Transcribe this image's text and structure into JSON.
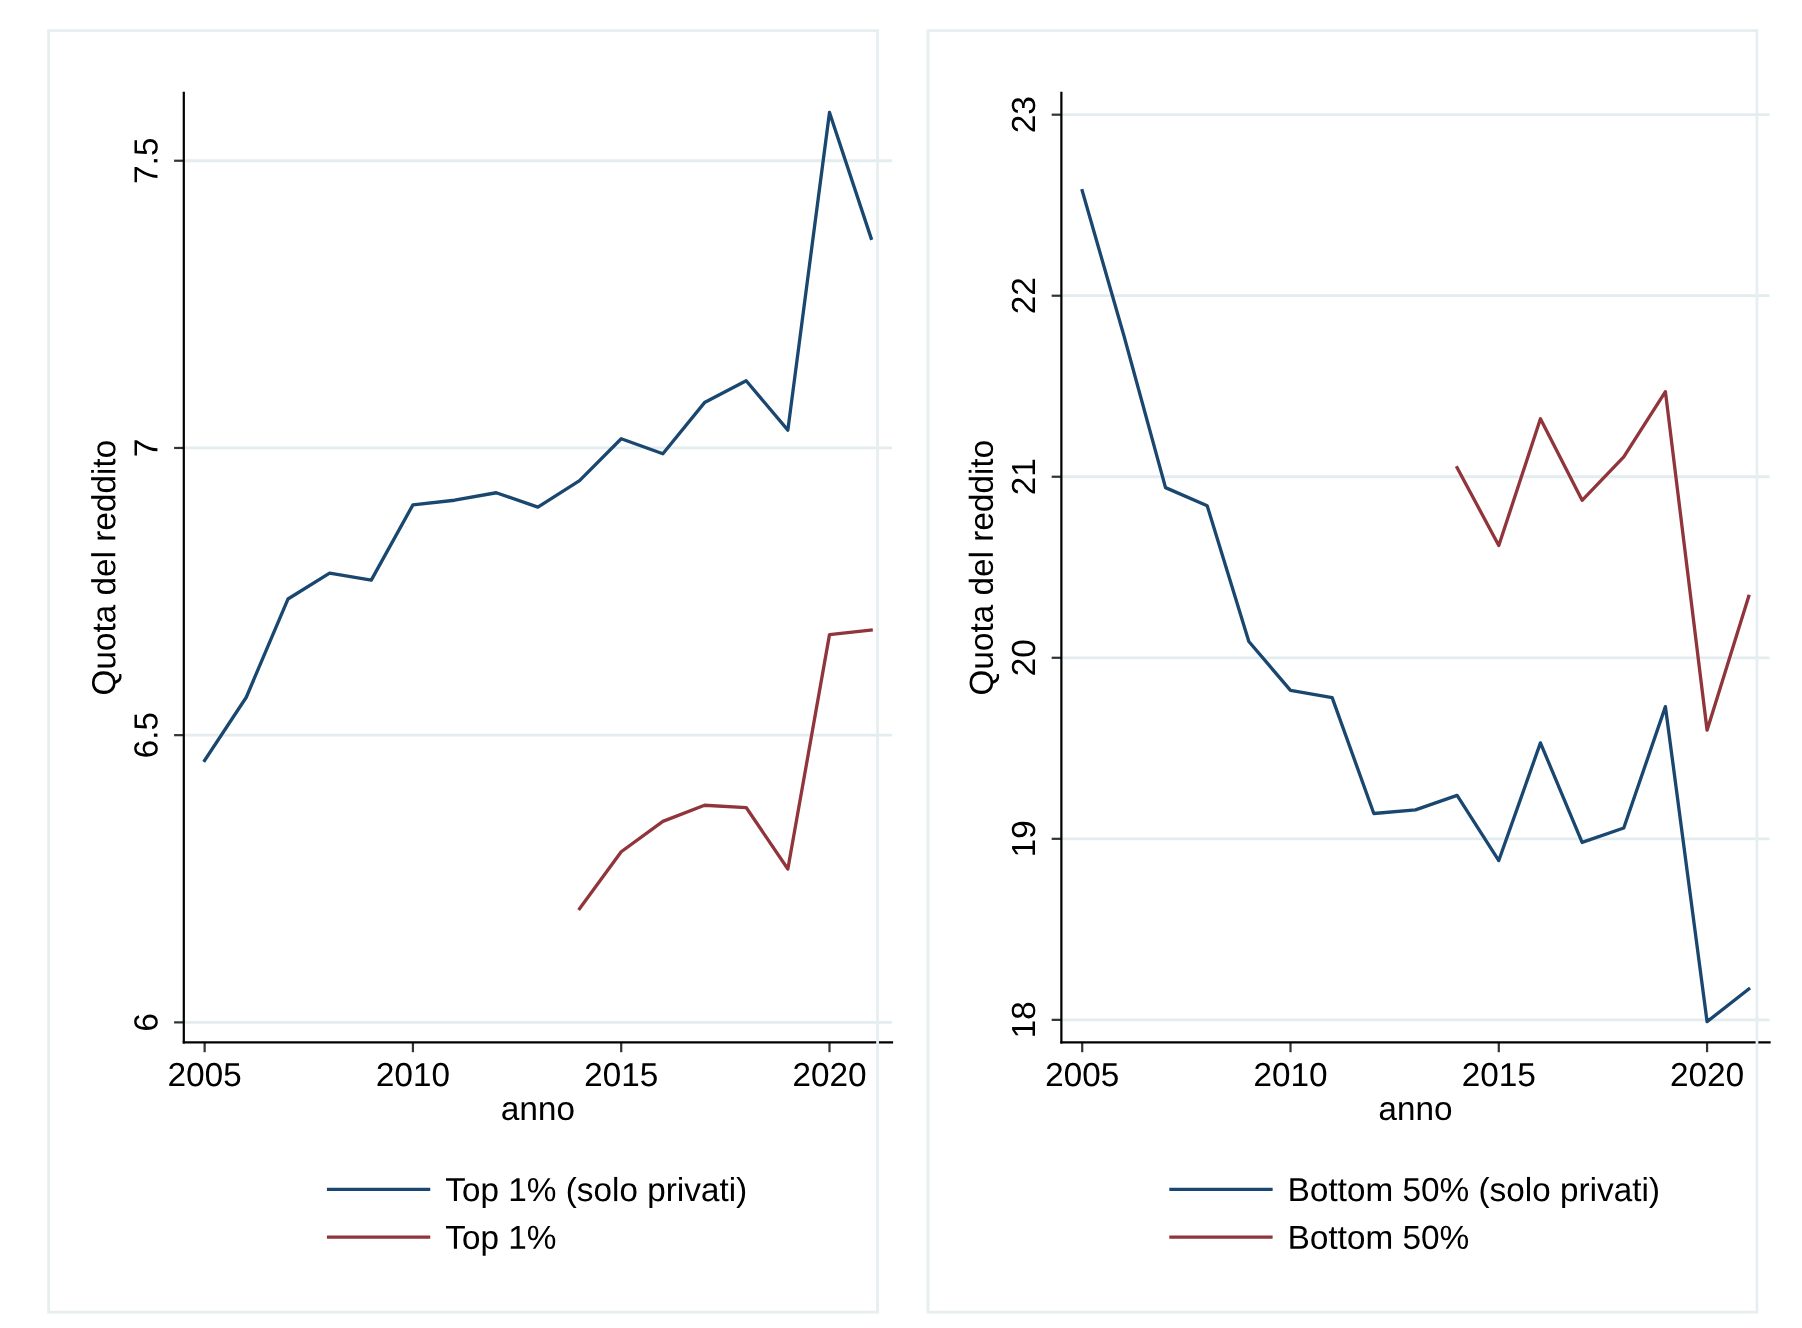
{
  "chart_data": [
    {
      "type": "line",
      "xlabel": "anno",
      "ylabel": "Quota del reddito",
      "x": [
        2005,
        2006,
        2007,
        2008,
        2009,
        2010,
        2011,
        2012,
        2013,
        2014,
        2015,
        2016,
        2017,
        2018,
        2019,
        2020,
        2021
      ],
      "series": [
        {
          "name": "Top 1% (solo privati)",
          "color": "#1a476f",
          "values": [
            6.456,
            6.566,
            6.737,
            6.782,
            6.77,
            6.901,
            6.909,
            6.922,
            6.897,
            6.943,
            7.016,
            6.99,
            7.079,
            7.117,
            7.031,
            7.584,
            7.365
          ]
        },
        {
          "name": "Top 1%",
          "color": "#90353b",
          "values": [
            null,
            null,
            null,
            null,
            null,
            null,
            null,
            null,
            null,
            6.198,
            6.297,
            6.35,
            6.378,
            6.374,
            6.267,
            6.675,
            6.683
          ]
        }
      ],
      "xlim": [
        2004.5,
        2021.5
      ],
      "xticks": [
        2005,
        2010,
        2015,
        2020
      ],
      "ylim": [
        5.965,
        7.618
      ],
      "yticks": [
        6,
        6.5,
        7,
        7.5
      ],
      "grid": "y",
      "legend": "bottom"
    },
    {
      "type": "line",
      "xlabel": "anno",
      "ylabel": "Quota del reddito",
      "x": [
        2005,
        2006,
        2007,
        2008,
        2009,
        2010,
        2011,
        2012,
        2013,
        2014,
        2015,
        2016,
        2017,
        2018,
        2019,
        2020,
        2021
      ],
      "series": [
        {
          "name": "Bottom 50% (solo privati)",
          "color": "#1a476f",
          "values": [
            22.58,
            21.78,
            20.94,
            20.84,
            20.09,
            19.82,
            19.78,
            19.14,
            19.16,
            19.24,
            18.88,
            19.53,
            18.98,
            19.06,
            19.73,
            17.99,
            18.17
          ]
        },
        {
          "name": "Bottom 50%",
          "color": "#90353b",
          "values": [
            null,
            null,
            null,
            null,
            null,
            null,
            null,
            null,
            null,
            21.05,
            20.62,
            21.32,
            20.87,
            21.11,
            21.47,
            19.6,
            20.34
          ]
        }
      ],
      "xlim": [
        2004.5,
        2021.5
      ],
      "xticks": [
        2005,
        2010,
        2015,
        2020
      ],
      "ylim": [
        17.875,
        23.12
      ],
      "yticks": [
        18,
        19,
        20,
        21,
        22,
        23
      ],
      "grid": "y",
      "legend": "bottom"
    }
  ]
}
